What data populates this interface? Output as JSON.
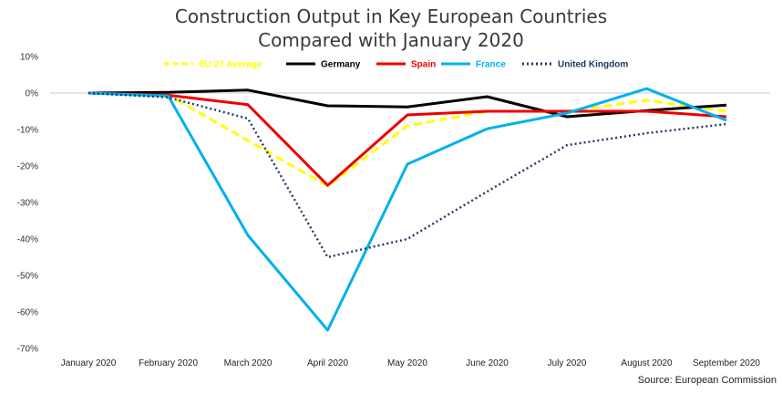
{
  "chart_data": {
    "type": "line",
    "title_line1": "Construction Output in Key European Countries",
    "title_line2": "Compared with January 2020",
    "source": "Source: European Commission",
    "categories": [
      "January 2020",
      "February 2020",
      "March 2020",
      "April 2020",
      "May 2020",
      "June 2020",
      "July 2020",
      "August 2020",
      "September 2020"
    ],
    "ylim": [
      -70,
      10
    ],
    "yticks": [
      10,
      0,
      -10,
      -20,
      -30,
      -40,
      -50,
      -60,
      -70
    ],
    "ytick_labels": [
      "10%",
      "0%",
      "-10%",
      "-20%",
      "-30%",
      "-40%",
      "-50%",
      "-60%",
      "-70%"
    ],
    "grid": false,
    "legend_position": "top",
    "series": [
      {
        "name": "EU 27 Average",
        "color": "#ffff00",
        "dash": "dashed",
        "values": [
          0,
          -0.5,
          -13,
          -25.5,
          -9,
          -5,
          -5,
          -2,
          -5
        ]
      },
      {
        "name": "Germany",
        "color": "#000000",
        "dash": "solid",
        "values": [
          0,
          0.2,
          0.8,
          -3.5,
          -3.8,
          -1,
          -6.5,
          -4.8,
          -3.3
        ]
      },
      {
        "name": "Spain",
        "color": "#ee0000",
        "dash": "solid",
        "values": [
          0,
          -0.6,
          -3.2,
          -25.3,
          -6,
          -5,
          -5,
          -5,
          -6.5
        ]
      },
      {
        "name": "France",
        "color": "#00b0f0",
        "dash": "solid",
        "values": [
          0,
          -0.8,
          -39,
          -65,
          -19.5,
          -9.8,
          -5.5,
          1.2,
          -7.5
        ]
      },
      {
        "name": "United Kingdom",
        "color": "#1f3864",
        "dash": "dotted",
        "values": [
          0,
          -1.2,
          -7,
          -45,
          -40,
          -27,
          -14.3,
          -11,
          -8.5
        ]
      }
    ]
  }
}
